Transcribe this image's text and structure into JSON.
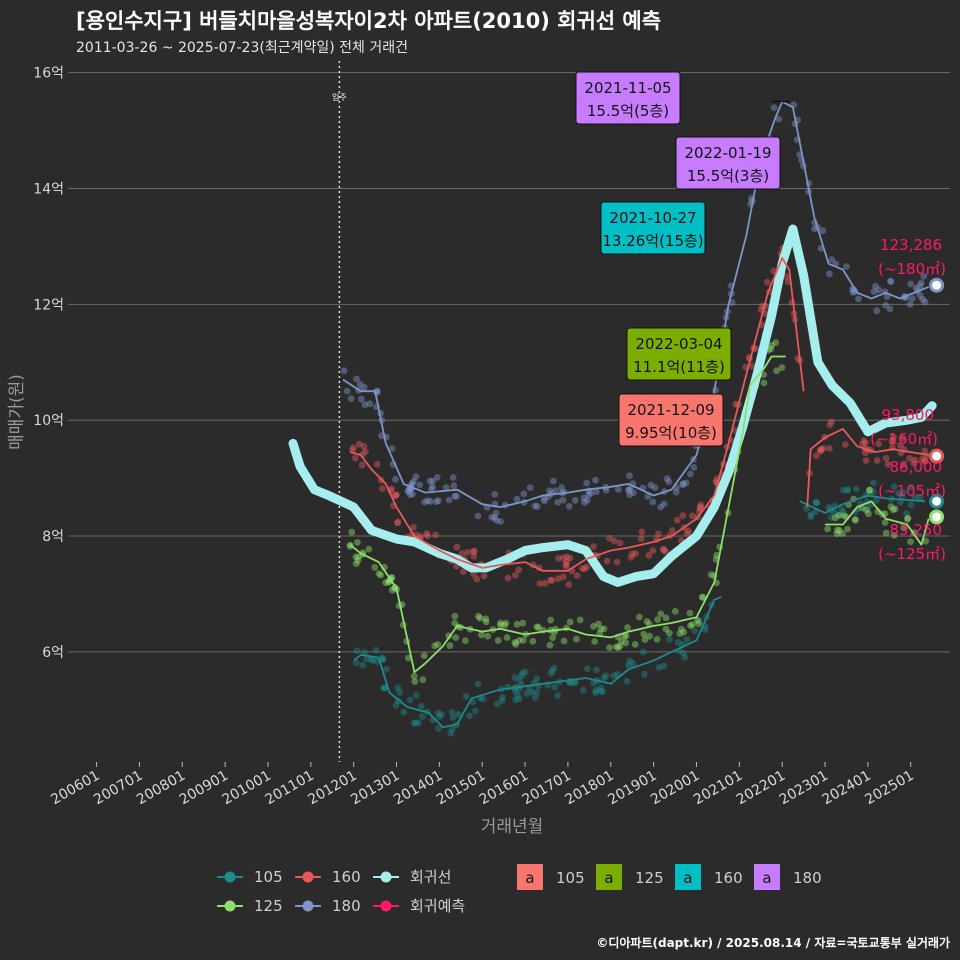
{
  "header": {
    "title": "[용인수지구] 버들치마을성복자이2차 아파트(2010) 회귀선 예측",
    "subtitle": "2011-03-26 ~ 2025-07-23(최근계약일) 전체 거래건"
  },
  "footer": {
    "credit": "©디아파트(dapt.kr) / 2025.08.14 / 자료=국토교통부 실거래가"
  },
  "chart_data": {
    "type": "scatter",
    "xlabel": "거래년월",
    "ylabel": "매매가(원)",
    "ylim": [
      4.1,
      16.2
    ],
    "xlim": [
      "2005-05",
      "2025-12"
    ],
    "x_ticks": [
      "200601",
      "200701",
      "200801",
      "200901",
      "201001",
      "201101",
      "201201",
      "201301",
      "201401",
      "201501",
      "201601",
      "201701",
      "201801",
      "201901",
      "202001",
      "202101",
      "202201",
      "202301",
      "202401",
      "202501"
    ],
    "y_ticks": [
      {
        "v": 6,
        "label": "6억"
      },
      {
        "v": 8,
        "label": "8억"
      },
      {
        "v": 10,
        "label": "10억"
      },
      {
        "v": 12,
        "label": "12억"
      },
      {
        "v": 14,
        "label": "14억"
      },
      {
        "v": 16,
        "label": "16억"
      }
    ],
    "grid": true,
    "move_in": {
      "x": "2011-09",
      "label": "입주"
    },
    "colors": {
      "105": "#1f8a8a",
      "125": "#8de06a",
      "160": "#e8595c",
      "180": "#7f95c8",
      "regression": "#a6eeee",
      "forecast": "#ff1a66"
    },
    "series": [
      {
        "name": "105",
        "trend": [
          [
            "2012-01",
            5.85
          ],
          [
            "2012-03",
            5.95
          ],
          [
            "2012-08",
            5.9
          ],
          [
            "2012-11",
            5.3
          ],
          [
            "2013-04",
            5.05
          ],
          [
            "2013-10",
            4.95
          ],
          [
            "2014-02",
            4.7
          ],
          [
            "2014-06",
            4.75
          ],
          [
            "2014-10",
            5.2
          ],
          [
            "2015-06",
            5.35
          ],
          [
            "2016-06",
            5.45
          ],
          [
            "2017-06",
            5.55
          ],
          [
            "2018-01",
            5.45
          ],
          [
            "2018-06",
            5.7
          ],
          [
            "2019-01",
            5.85
          ],
          [
            "2019-06",
            6.0
          ],
          [
            "2020-01",
            6.2
          ],
          [
            "2020-06",
            6.9
          ],
          [
            "2020-08",
            6.95
          ]
        ],
        "trend2": [
          [
            "2022-06",
            8.6
          ],
          [
            "2023-01",
            8.4
          ],
          [
            "2023-06",
            8.55
          ],
          [
            "2024-01",
            8.7
          ],
          [
            "2024-06",
            8.65
          ],
          [
            "2025-05",
            8.6
          ]
        ]
      },
      {
        "name": "125",
        "trend": [
          [
            "2011-12",
            7.85
          ],
          [
            "2012-03",
            7.7
          ],
          [
            "2012-08",
            7.55
          ],
          [
            "2013-01",
            7.1
          ],
          [
            "2013-06",
            5.65
          ],
          [
            "2013-09",
            5.8
          ],
          [
            "2014-02",
            6.1
          ],
          [
            "2014-06",
            6.45
          ],
          [
            "2015-01",
            6.35
          ],
          [
            "2015-06",
            6.4
          ],
          [
            "2016-01",
            6.3
          ],
          [
            "2016-06",
            6.35
          ],
          [
            "2017-01",
            6.4
          ],
          [
            "2017-06",
            6.3
          ],
          [
            "2018-01",
            6.25
          ],
          [
            "2018-06",
            6.35
          ],
          [
            "2019-01",
            6.45
          ],
          [
            "2019-06",
            6.5
          ],
          [
            "2020-01",
            6.6
          ],
          [
            "2020-06",
            7.2
          ],
          [
            "2020-10",
            8.5
          ],
          [
            "2021-02",
            9.8
          ],
          [
            "2021-04",
            10.6
          ],
          [
            "2021-08",
            10.9
          ],
          [
            "2021-10",
            11.1
          ],
          [
            "2022-02",
            11.1
          ]
        ],
        "trend2": [
          [
            "2023-01",
            8.2
          ],
          [
            "2023-06",
            8.2
          ],
          [
            "2023-10",
            8.5
          ],
          [
            "2024-02",
            8.6
          ],
          [
            "2024-06",
            8.3
          ],
          [
            "2024-12",
            8.2
          ],
          [
            "2025-04",
            7.85
          ],
          [
            "2025-06",
            8.3
          ]
        ]
      },
      {
        "name": "160",
        "trend": [
          [
            "2011-12",
            9.45
          ],
          [
            "2012-03",
            9.4
          ],
          [
            "2012-06",
            9.15
          ],
          [
            "2012-10",
            8.9
          ],
          [
            "2013-01",
            8.5
          ],
          [
            "2013-06",
            8.0
          ],
          [
            "2014-01",
            7.75
          ],
          [
            "2014-06",
            7.6
          ],
          [
            "2015-01",
            7.45
          ],
          [
            "2015-06",
            7.5
          ],
          [
            "2016-01",
            7.55
          ],
          [
            "2016-06",
            7.4
          ],
          [
            "2017-01",
            7.4
          ],
          [
            "2017-06",
            7.6
          ],
          [
            "2018-01",
            7.75
          ],
          [
            "2018-06",
            7.8
          ],
          [
            "2019-01",
            7.9
          ],
          [
            "2019-06",
            8.0
          ],
          [
            "2020-01",
            8.3
          ],
          [
            "2020-06",
            8.7
          ],
          [
            "2020-10",
            9.6
          ],
          [
            "2021-03",
            10.8
          ],
          [
            "2021-09",
            12.2
          ],
          [
            "2022-01",
            12.8
          ],
          [
            "2022-03",
            12.6
          ],
          [
            "2022-07",
            10.5
          ]
        ],
        "trend2": [
          [
            "2022-08",
            8.5
          ],
          [
            "2022-09",
            9.5
          ],
          [
            "2023-01",
            9.7
          ],
          [
            "2023-06",
            9.85
          ],
          [
            "2023-10",
            9.55
          ],
          [
            "2024-03",
            9.45
          ],
          [
            "2024-08",
            9.5
          ],
          [
            "2025-06",
            9.4
          ]
        ]
      },
      {
        "name": "180",
        "trend": [
          [
            "2011-10",
            10.7
          ],
          [
            "2012-03",
            10.5
          ],
          [
            "2012-07",
            10.5
          ],
          [
            "2012-10",
            9.6
          ],
          [
            "2013-03",
            8.9
          ],
          [
            "2013-09",
            8.75
          ],
          [
            "2014-06",
            8.8
          ],
          [
            "2015-01",
            8.55
          ],
          [
            "2015-06",
            8.5
          ],
          [
            "2016-01",
            8.6
          ],
          [
            "2016-06",
            8.7
          ],
          [
            "2017-01",
            8.75
          ],
          [
            "2017-06",
            8.8
          ],
          [
            "2018-01",
            8.85
          ],
          [
            "2018-06",
            8.9
          ],
          [
            "2019-01",
            8.7
          ],
          [
            "2019-06",
            8.8
          ],
          [
            "2020-01",
            9.4
          ],
          [
            "2020-06",
            10.5
          ],
          [
            "2020-10",
            12.0
          ],
          [
            "2021-03",
            13.2
          ],
          [
            "2021-07",
            14.5
          ],
          [
            "2021-11",
            15.2
          ],
          [
            "2022-01",
            15.5
          ],
          [
            "2022-04",
            15.4
          ],
          [
            "2022-10",
            13.5
          ],
          [
            "2023-02",
            12.7
          ],
          [
            "2023-06",
            12.6
          ],
          [
            "2023-10",
            12.2
          ],
          [
            "2024-02",
            12.1
          ],
          [
            "2024-06",
            12.2
          ],
          [
            "2024-10",
            12.1
          ],
          [
            "2025-06",
            12.3
          ]
        ]
      }
    ],
    "regression": [
      [
        "2010-08",
        9.6
      ],
      [
        "2010-10",
        9.2
      ],
      [
        "2011-02",
        8.8
      ],
      [
        "2011-06",
        8.7
      ],
      [
        "2012-01",
        8.5
      ],
      [
        "2012-06",
        8.1
      ],
      [
        "2013-01",
        7.95
      ],
      [
        "2013-06",
        7.9
      ],
      [
        "2014-01",
        7.7
      ],
      [
        "2014-06",
        7.6
      ],
      [
        "2014-10",
        7.45
      ],
      [
        "2015-02",
        7.45
      ],
      [
        "2015-08",
        7.6
      ],
      [
        "2016-01",
        7.75
      ],
      [
        "2016-06",
        7.8
      ],
      [
        "2017-01",
        7.85
      ],
      [
        "2017-06",
        7.75
      ],
      [
        "2017-11",
        7.3
      ],
      [
        "2018-03",
        7.2
      ],
      [
        "2018-08",
        7.3
      ],
      [
        "2019-01",
        7.35
      ],
      [
        "2019-06",
        7.65
      ],
      [
        "2020-01",
        8.0
      ],
      [
        "2020-06",
        8.5
      ],
      [
        "2020-10",
        9.1
      ],
      [
        "2021-02",
        9.9
      ],
      [
        "2021-06",
        10.8
      ],
      [
        "2021-10",
        11.8
      ],
      [
        "2022-01",
        12.7
      ],
      [
        "2022-04",
        13.3
      ],
      [
        "2022-07",
        12.5
      ],
      [
        "2022-11",
        11.0
      ],
      [
        "2023-03",
        10.6
      ],
      [
        "2023-08",
        10.3
      ],
      [
        "2024-01",
        9.8
      ],
      [
        "2024-06",
        9.95
      ],
      [
        "2024-12",
        10.0
      ],
      [
        "2025-04",
        10.05
      ],
      [
        "2025-07",
        10.25
      ]
    ],
    "annotations": [
      {
        "date_label": "2021-11-05",
        "price_label": "15.5억(5층)",
        "size": "180",
        "x": "2021-11",
        "y": 15.5
      },
      {
        "date_label": "2022-01-19",
        "price_label": "15.5억(3층)",
        "size": "180",
        "x": "2022-01",
        "y": 15.5
      },
      {
        "date_label": "2021-10-27",
        "price_label": "13.26억(15층)",
        "size": "160",
        "x": "2021-10",
        "y": 13.26
      },
      {
        "date_label": "2022-03-04",
        "price_label": "11.1억(11층)",
        "size": "125",
        "x": "2022-03",
        "y": 11.1
      },
      {
        "date_label": "2021-12-09",
        "price_label": "9.95억(10층)",
        "size": "105",
        "x": "2021-12",
        "y": 9.95
      }
    ],
    "forecasts": [
      {
        "size": "180",
        "value": "123,286",
        "area": "(~180㎡)",
        "x": "2025-06",
        "y": 12.33
      },
      {
        "size": "160",
        "value": "93,800",
        "area": "(~160㎡)",
        "x": "2025-06",
        "y": 9.38
      },
      {
        "size": "105",
        "value": "86,000",
        "area": "(~105㎡)",
        "x": "2025-06",
        "y": 8.6
      },
      {
        "size": "125",
        "value": "83,250",
        "area": "(~125㎡)",
        "x": "2025-06",
        "y": 8.33
      }
    ],
    "legend": {
      "placement": "bottom",
      "lines": [
        {
          "key": "105",
          "label": "105"
        },
        {
          "key": "160",
          "label": "160"
        },
        {
          "key": "regression",
          "label": "회귀선"
        },
        {
          "key": "125",
          "label": "125"
        },
        {
          "key": "180",
          "label": "180"
        },
        {
          "key": "forecast",
          "label": "회귀예측"
        }
      ],
      "boxes": [
        {
          "label": "105",
          "color": "#f8766d",
          "glyph": "a"
        },
        {
          "label": "125",
          "color": "#7cae00",
          "glyph": "a"
        },
        {
          "label": "160",
          "color": "#00bfc4",
          "glyph": "a"
        },
        {
          "label": "180",
          "color": "#c77cff",
          "glyph": "a"
        }
      ]
    }
  }
}
